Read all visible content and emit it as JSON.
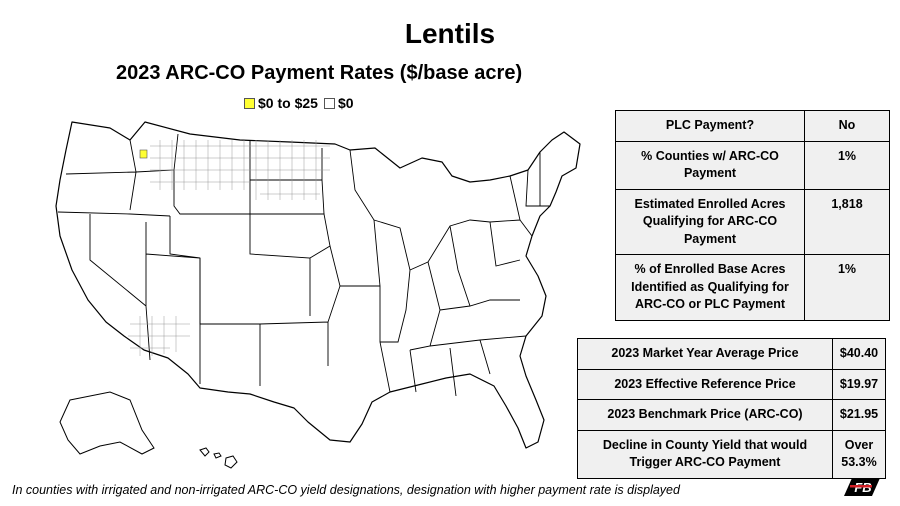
{
  "title": "Lentils",
  "subtitle": "2023 ARC-CO Payment Rates ($/base acre)",
  "legend": [
    {
      "label": "$0 to $25",
      "color": "#ffff33"
    },
    {
      "label": "$0",
      "color": "#ffffff"
    }
  ],
  "colors": {
    "highlight": "#ffff33",
    "zero": "#ffffff",
    "county_outline": "#888888",
    "table_bg": "#f0f0f0"
  },
  "plc_table": [
    {
      "key": "PLC Payment?",
      "value": "No"
    },
    {
      "key": "% Counties w/ ARC-CO Payment",
      "value": "1%"
    },
    {
      "key": "Estimated Enrolled Acres Qualifying for ARC-CO Payment",
      "value": "1,818"
    },
    {
      "key": "% of Enrolled Base Acres Identified as Qualifying for ARC-CO or PLC Payment",
      "value": "1%"
    }
  ],
  "price_table": [
    {
      "key": "2023 Market Year Average Price",
      "value": "$40.40"
    },
    {
      "key": "2023 Effective Reference Price",
      "value": "$19.97"
    },
    {
      "key": "2023 Benchmark Price (ARC-CO)",
      "value": "$21.95"
    },
    {
      "key": "Decline in County Yield that would Trigger ARC-CO Payment",
      "value": "Over 53.3%"
    }
  ],
  "footnote": "In counties with irrigated and non-irrigated ARC-CO yield designations, designation with higher payment rate is displayed",
  "logo": {
    "text": "FB",
    "icon": "farm-bureau-logo"
  }
}
